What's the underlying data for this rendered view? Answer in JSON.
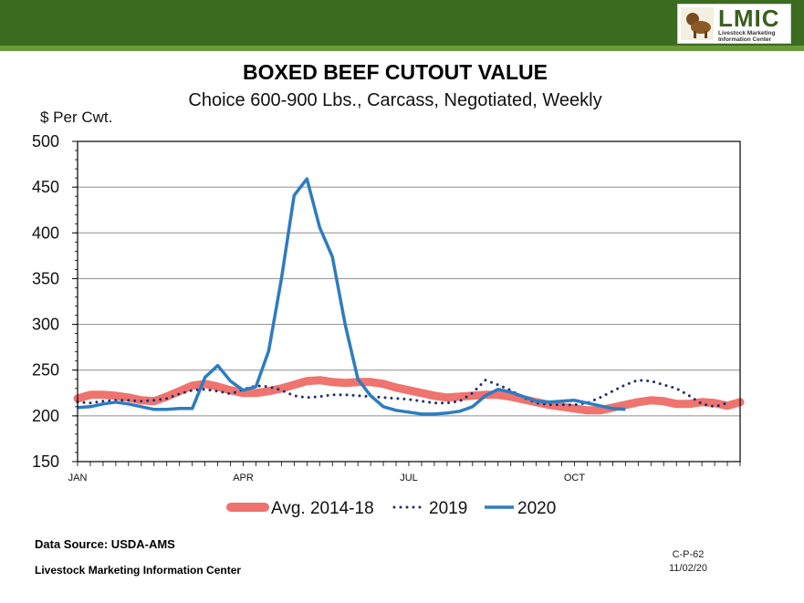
{
  "header": {
    "logo_text": "LMIC",
    "logo_subtext": "Livestock Marketing Information Center",
    "colors": {
      "bar": "#3a6b1e",
      "bar_line": "#6b9a3a"
    }
  },
  "chart_data": {
    "type": "line",
    "title": "BOXED BEEF CUTOUT VALUE",
    "subtitle": "Choice 600-900 Lbs., Carcass, Negotiated, Weekly",
    "ylabel": "$ Per Cwt.",
    "xlabel": "",
    "ylim": [
      150,
      500
    ],
    "yticks": [
      150,
      200,
      250,
      300,
      350,
      400,
      450,
      500
    ],
    "xlim": [
      1,
      53
    ],
    "month_labels": [
      {
        "label": "JAN",
        "week": 1
      },
      {
        "label": "APR",
        "week": 14
      },
      {
        "label": "JUL",
        "week": 27
      },
      {
        "label": "OCT",
        "week": 40
      }
    ],
    "grid": true,
    "legend_position": "bottom",
    "series": [
      {
        "name": "Avg. 2014-18",
        "color": "#ee6b66",
        "style": "thick",
        "x": [
          1,
          2,
          3,
          4,
          5,
          6,
          7,
          8,
          9,
          10,
          11,
          12,
          13,
          14,
          15,
          16,
          17,
          18,
          19,
          20,
          21,
          22,
          23,
          24,
          25,
          26,
          27,
          28,
          29,
          30,
          31,
          32,
          33,
          34,
          35,
          36,
          37,
          38,
          39,
          40,
          41,
          42,
          43,
          44,
          45,
          46,
          47,
          48,
          49,
          50,
          51,
          52,
          53
        ],
        "values": [
          219,
          223,
          223,
          222,
          220,
          217,
          216,
          221,
          227,
          233,
          235,
          232,
          228,
          225,
          225,
          227,
          230,
          234,
          238,
          239,
          237,
          236,
          237,
          237,
          235,
          231,
          228,
          225,
          222,
          220,
          221,
          222,
          223,
          223,
          221,
          218,
          215,
          212,
          210,
          208,
          206,
          206,
          209,
          212,
          215,
          217,
          216,
          213,
          213,
          215,
          214,
          211,
          215
        ]
      },
      {
        "name": "2019",
        "color": "#1f2f6e",
        "style": "dotted",
        "x": [
          1,
          2,
          3,
          4,
          5,
          6,
          7,
          8,
          9,
          10,
          11,
          12,
          13,
          14,
          15,
          16,
          17,
          18,
          19,
          20,
          21,
          22,
          23,
          24,
          25,
          26,
          27,
          28,
          29,
          30,
          31,
          32,
          33,
          34,
          35,
          36,
          37,
          38,
          39,
          40,
          41,
          42,
          43,
          44,
          45,
          46,
          47,
          48,
          49,
          50,
          51,
          52
        ],
        "values": [
          215,
          214,
          216,
          217,
          217,
          216,
          217,
          219,
          224,
          228,
          229,
          227,
          224,
          229,
          233,
          232,
          228,
          222,
          220,
          221,
          223,
          223,
          222,
          221,
          220,
          219,
          218,
          216,
          214,
          214,
          216,
          225,
          239,
          234,
          228,
          220,
          214,
          212,
          212,
          212,
          214,
          220,
          227,
          234,
          239,
          238,
          234,
          230,
          222,
          213,
          210,
          214
        ]
      },
      {
        "name": "2020",
        "color": "#2d7cc0",
        "style": "solid",
        "x": [
          1,
          2,
          3,
          4,
          5,
          6,
          7,
          8,
          9,
          10,
          11,
          12,
          13,
          14,
          15,
          16,
          17,
          18,
          19,
          20,
          21,
          22,
          23,
          24,
          25,
          26,
          27,
          28,
          29,
          30,
          31,
          32,
          33,
          34,
          35,
          36,
          37,
          38,
          39,
          40,
          41,
          42,
          43,
          44
        ],
        "values": [
          209,
          210,
          213,
          215,
          213,
          210,
          207,
          207,
          208,
          208,
          242,
          255,
          238,
          228,
          232,
          271,
          350,
          441,
          459,
          406,
          374,
          300,
          240,
          222,
          210,
          206,
          204,
          202,
          202,
          203,
          205,
          210,
          222,
          229,
          226,
          221,
          216,
          215,
          216,
          217,
          214,
          211,
          208,
          207
        ]
      }
    ]
  },
  "footer": {
    "source": "Data Source:  USDA-AMS",
    "org": "Livestock Marketing Information Center",
    "code": "C-P-62",
    "date": "11/02/20"
  }
}
